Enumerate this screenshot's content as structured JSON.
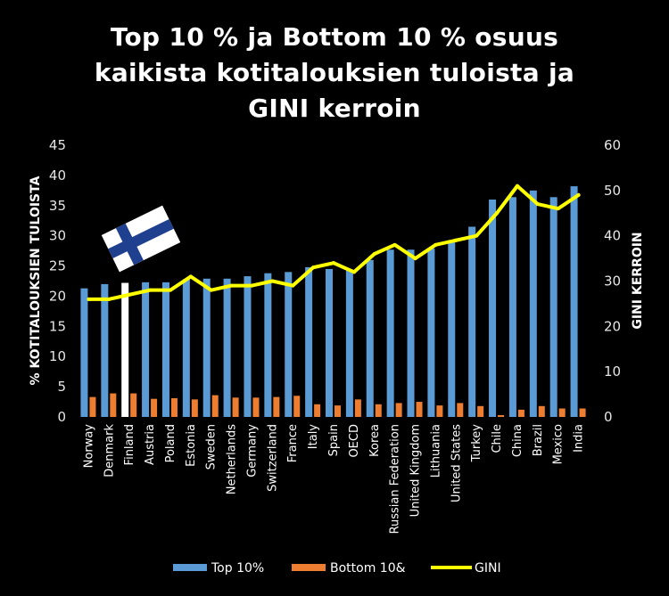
{
  "chart_data": {
    "type": "bar",
    "title_lines": [
      "Top 10 % ja Bottom 10 % osuus",
      "kaikista kotitalouksien tuloista ja",
      "GINI kerroin"
    ],
    "ylabel_left": "% KOTITALOUKSIEN TULOISTA",
    "ylabel_right": "GINI KERROIN",
    "ylim_left": [
      0,
      45
    ],
    "yticks_left": [
      "0",
      "5",
      "10",
      "15",
      "20",
      "25",
      "30",
      "35",
      "40",
      "45"
    ],
    "ylim_right": [
      0,
      60
    ],
    "yticks_right": [
      "0",
      "10",
      "20",
      "30",
      "40",
      "50",
      "60"
    ],
    "categories": [
      "Norway",
      "Denmark",
      "Finland",
      "Austria",
      "Poland",
      "Estonia",
      "Sweden",
      "Netherlands",
      "Germany",
      "Switzerland",
      "France",
      "Italy",
      "Spain",
      "OECD",
      "Korea",
      "Russian Federation",
      "United Kingdom",
      "Lithuania",
      "United States",
      "Turkey",
      "Chile",
      "China",
      "Brazil",
      "Mexico",
      "India"
    ],
    "highlight_category": "Finland",
    "series": [
      {
        "name": "Top 10%",
        "axis": "left",
        "type": "bar",
        "color": "#5b9bd5",
        "values": [
          21.3,
          22.0,
          22.2,
          22.3,
          22.3,
          22.8,
          22.9,
          22.9,
          23.3,
          23.8,
          24.0,
          24.8,
          24.5,
          24.3,
          26.0,
          27.7,
          27.7,
          27.9,
          29.3,
          31.5,
          36.0,
          36.4,
          37.5,
          36.4,
          38.2
        ]
      },
      {
        "name": "Bottom 10&",
        "axis": "left",
        "type": "bar",
        "color": "#ed7d31",
        "values": [
          3.3,
          3.9,
          3.9,
          3.0,
          3.1,
          2.9,
          3.6,
          3.2,
          3.2,
          3.3,
          3.5,
          2.1,
          1.9,
          2.9,
          2.1,
          2.3,
          2.5,
          1.9,
          2.3,
          1.8,
          0.3,
          1.2,
          1.8,
          1.4,
          1.4
        ]
      },
      {
        "name": "GINI",
        "axis": "right",
        "type": "line",
        "color": "#ffff00",
        "values": [
          26,
          26,
          27,
          28,
          28,
          31,
          28,
          29,
          29,
          30,
          29,
          33,
          34,
          32,
          36,
          38,
          35,
          38,
          39,
          40,
          45,
          51,
          47,
          46,
          49
        ]
      }
    ],
    "legend_position": "bottom-center",
    "grid": false
  },
  "colors": {
    "background": "#000000",
    "highlight_bar": "#ffffff",
    "flag_blue": "#1f3f8f",
    "flag_white": "#ffffff"
  },
  "flag_icon": "finland-flag-icon"
}
